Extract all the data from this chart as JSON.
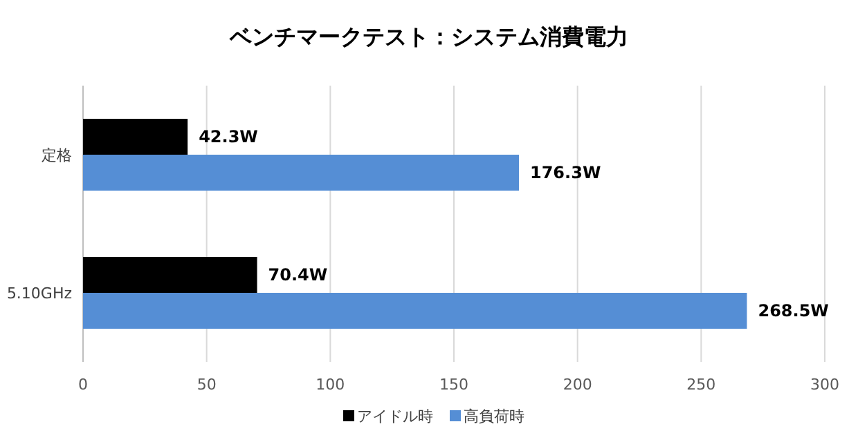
{
  "chart_data": {
    "type": "bar",
    "orientation": "horizontal",
    "title": "ベンチマークテスト：システム消費電力",
    "categories": [
      "定格",
      "5.10GHz"
    ],
    "series": [
      {
        "name": "アイドル時",
        "color": "#000000",
        "values": [
          42.3,
          70.4
        ],
        "value_labels": [
          "42.3W",
          "70.4W"
        ]
      },
      {
        "name": "高負荷時",
        "color": "#558ed5",
        "values": [
          176.3,
          268.5
        ],
        "value_labels": [
          "176.3W",
          "268.5W"
        ]
      }
    ],
    "xlim": [
      0,
      300
    ],
    "xticks": [
      0,
      50,
      100,
      150,
      200,
      250,
      300
    ],
    "grid": "x",
    "legend": "bottom"
  }
}
